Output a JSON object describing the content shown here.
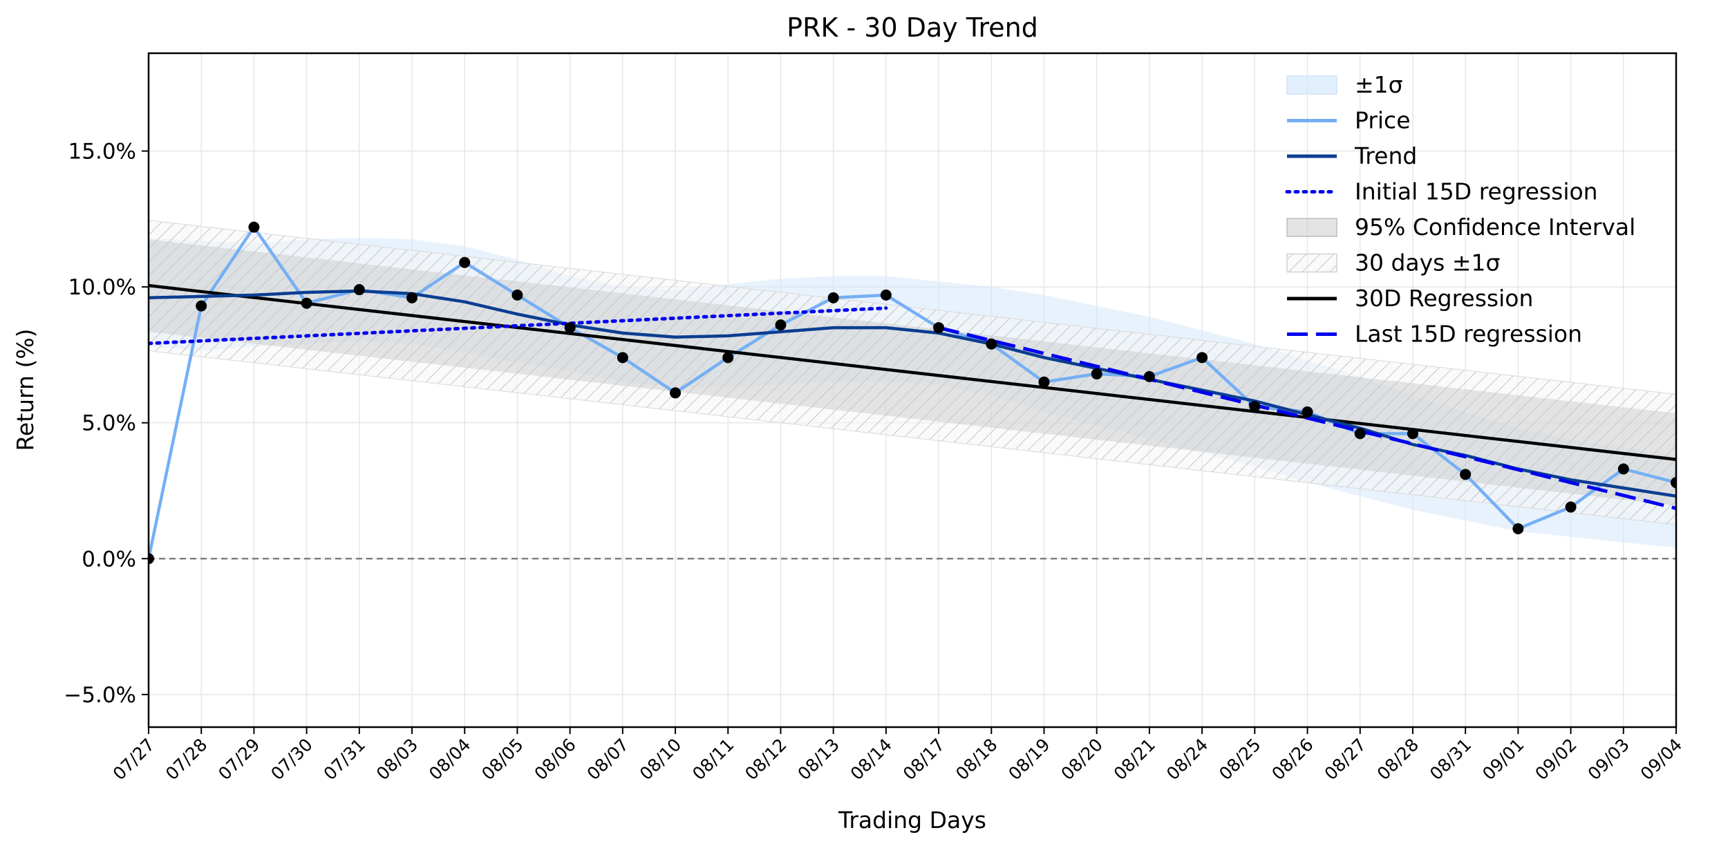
{
  "chart_data": {
    "type": "line",
    "title": "PRK - 30 Day Trend",
    "xlabel": "Trading Days",
    "ylabel": "Return (%)",
    "ylim": [
      -6.2,
      18.6
    ],
    "yticks": [
      -5.0,
      0.0,
      5.0,
      10.0,
      15.0
    ],
    "ytick_labels": [
      "−5.0%",
      "0.0%",
      "5.0%",
      "10.0%",
      "15.0%"
    ],
    "grid": true,
    "legend_position": "top-right",
    "x": [
      "07/27",
      "07/28",
      "07/29",
      "07/30",
      "07/31",
      "08/03",
      "08/04",
      "08/05",
      "08/06",
      "08/07",
      "08/10",
      "08/11",
      "08/12",
      "08/13",
      "08/14",
      "08/17",
      "08/18",
      "08/19",
      "08/20",
      "08/21",
      "08/24",
      "08/25",
      "08/26",
      "08/27",
      "08/28",
      "08/31",
      "09/01",
      "09/02",
      "09/03",
      "09/04"
    ],
    "series": [
      {
        "name": "Price",
        "color": "#75aff5",
        "values": [
          0.0,
          9.3,
          12.2,
          9.4,
          9.9,
          9.6,
          10.9,
          9.7,
          8.5,
          7.4,
          6.1,
          7.4,
          8.6,
          9.6,
          9.7,
          8.5,
          7.9,
          6.5,
          6.8,
          6.7,
          7.4,
          5.6,
          5.4,
          4.6,
          4.6,
          3.1,
          1.1,
          1.9,
          3.3,
          2.8
        ]
      },
      {
        "name": "Trend",
        "color": "#0b3d91",
        "values": [
          9.6,
          9.65,
          9.7,
          9.8,
          9.85,
          9.75,
          9.45,
          9.0,
          8.6,
          8.3,
          8.15,
          8.2,
          8.35,
          8.5,
          8.5,
          8.3,
          7.9,
          7.4,
          7.0,
          6.6,
          6.2,
          5.8,
          5.3,
          4.8,
          4.2,
          3.8,
          3.3,
          2.9,
          2.6,
          2.3
        ]
      },
      {
        "name": "Initial 15D regression",
        "color": "#0000ee",
        "style": "dotted",
        "start": 7.92,
        "end": 9.22
      },
      {
        "name": "30D Regression",
        "color": "#000000",
        "style": "solid",
        "start": 10.05,
        "end": 3.65
      },
      {
        "name": "Last 15D regression",
        "color": "#0000ee",
        "style": "dashed",
        "start": 8.5,
        "end": 1.85
      }
    ],
    "bands": [
      {
        "name": "±1σ",
        "color": "#d6e8fb",
        "upper": [
          11.8,
          11.7,
          11.6,
          11.75,
          11.8,
          11.75,
          11.5,
          11.0,
          10.4,
          10.0,
          9.9,
          10.1,
          10.3,
          10.4,
          10.4,
          10.2,
          10.0,
          9.7,
          9.3,
          8.9,
          8.4,
          7.9,
          7.3,
          6.7,
          6.0,
          5.4,
          4.8,
          4.4,
          4.1,
          3.8
        ],
        "lower": [
          7.8,
          7.65,
          7.8,
          7.9,
          8.0,
          7.9,
          7.6,
          7.2,
          6.9,
          6.5,
          6.3,
          6.3,
          6.4,
          6.5,
          6.5,
          6.4,
          6.0,
          5.4,
          4.9,
          4.4,
          3.9,
          3.4,
          2.8,
          2.3,
          1.8,
          1.4,
          1.0,
          0.8,
          0.6,
          0.4
        ]
      },
      {
        "name": "95% Confidence Interval",
        "color": "#c8c8c8",
        "upper_start": 11.75,
        "upper_end": 5.35,
        "lower_start": 8.35,
        "lower_end": 1.95
      },
      {
        "name": "30 days ±1σ",
        "color": "#bbbbbb",
        "hatch": true,
        "upper_start": 12.45,
        "upper_end": 6.05,
        "lower_start": 7.65,
        "lower_end": 1.25
      }
    ],
    "reference_line": {
      "y": 0,
      "color": "#808080",
      "style": "dashed"
    },
    "legend": [
      {
        "label": "±1σ",
        "kind": "patch",
        "color": "#d6e8fb"
      },
      {
        "label": "Price",
        "kind": "line",
        "color": "#75aff5",
        "style": "solid"
      },
      {
        "label": "Trend",
        "kind": "line",
        "color": "#0b3d91",
        "style": "solid"
      },
      {
        "label": "Initial 15D regression",
        "kind": "line",
        "color": "#0000ee",
        "style": "dotted"
      },
      {
        "label": "95% Confidence Interval",
        "kind": "patch",
        "color": "#c8c8c8"
      },
      {
        "label": "30 days ±1σ",
        "kind": "hatch",
        "color": "#bbbbbb"
      },
      {
        "label": "30D Regression",
        "kind": "line",
        "color": "#000000",
        "style": "solid"
      },
      {
        "label": "Last 15D regression",
        "kind": "line",
        "color": "#0000ee",
        "style": "dashed"
      }
    ]
  }
}
